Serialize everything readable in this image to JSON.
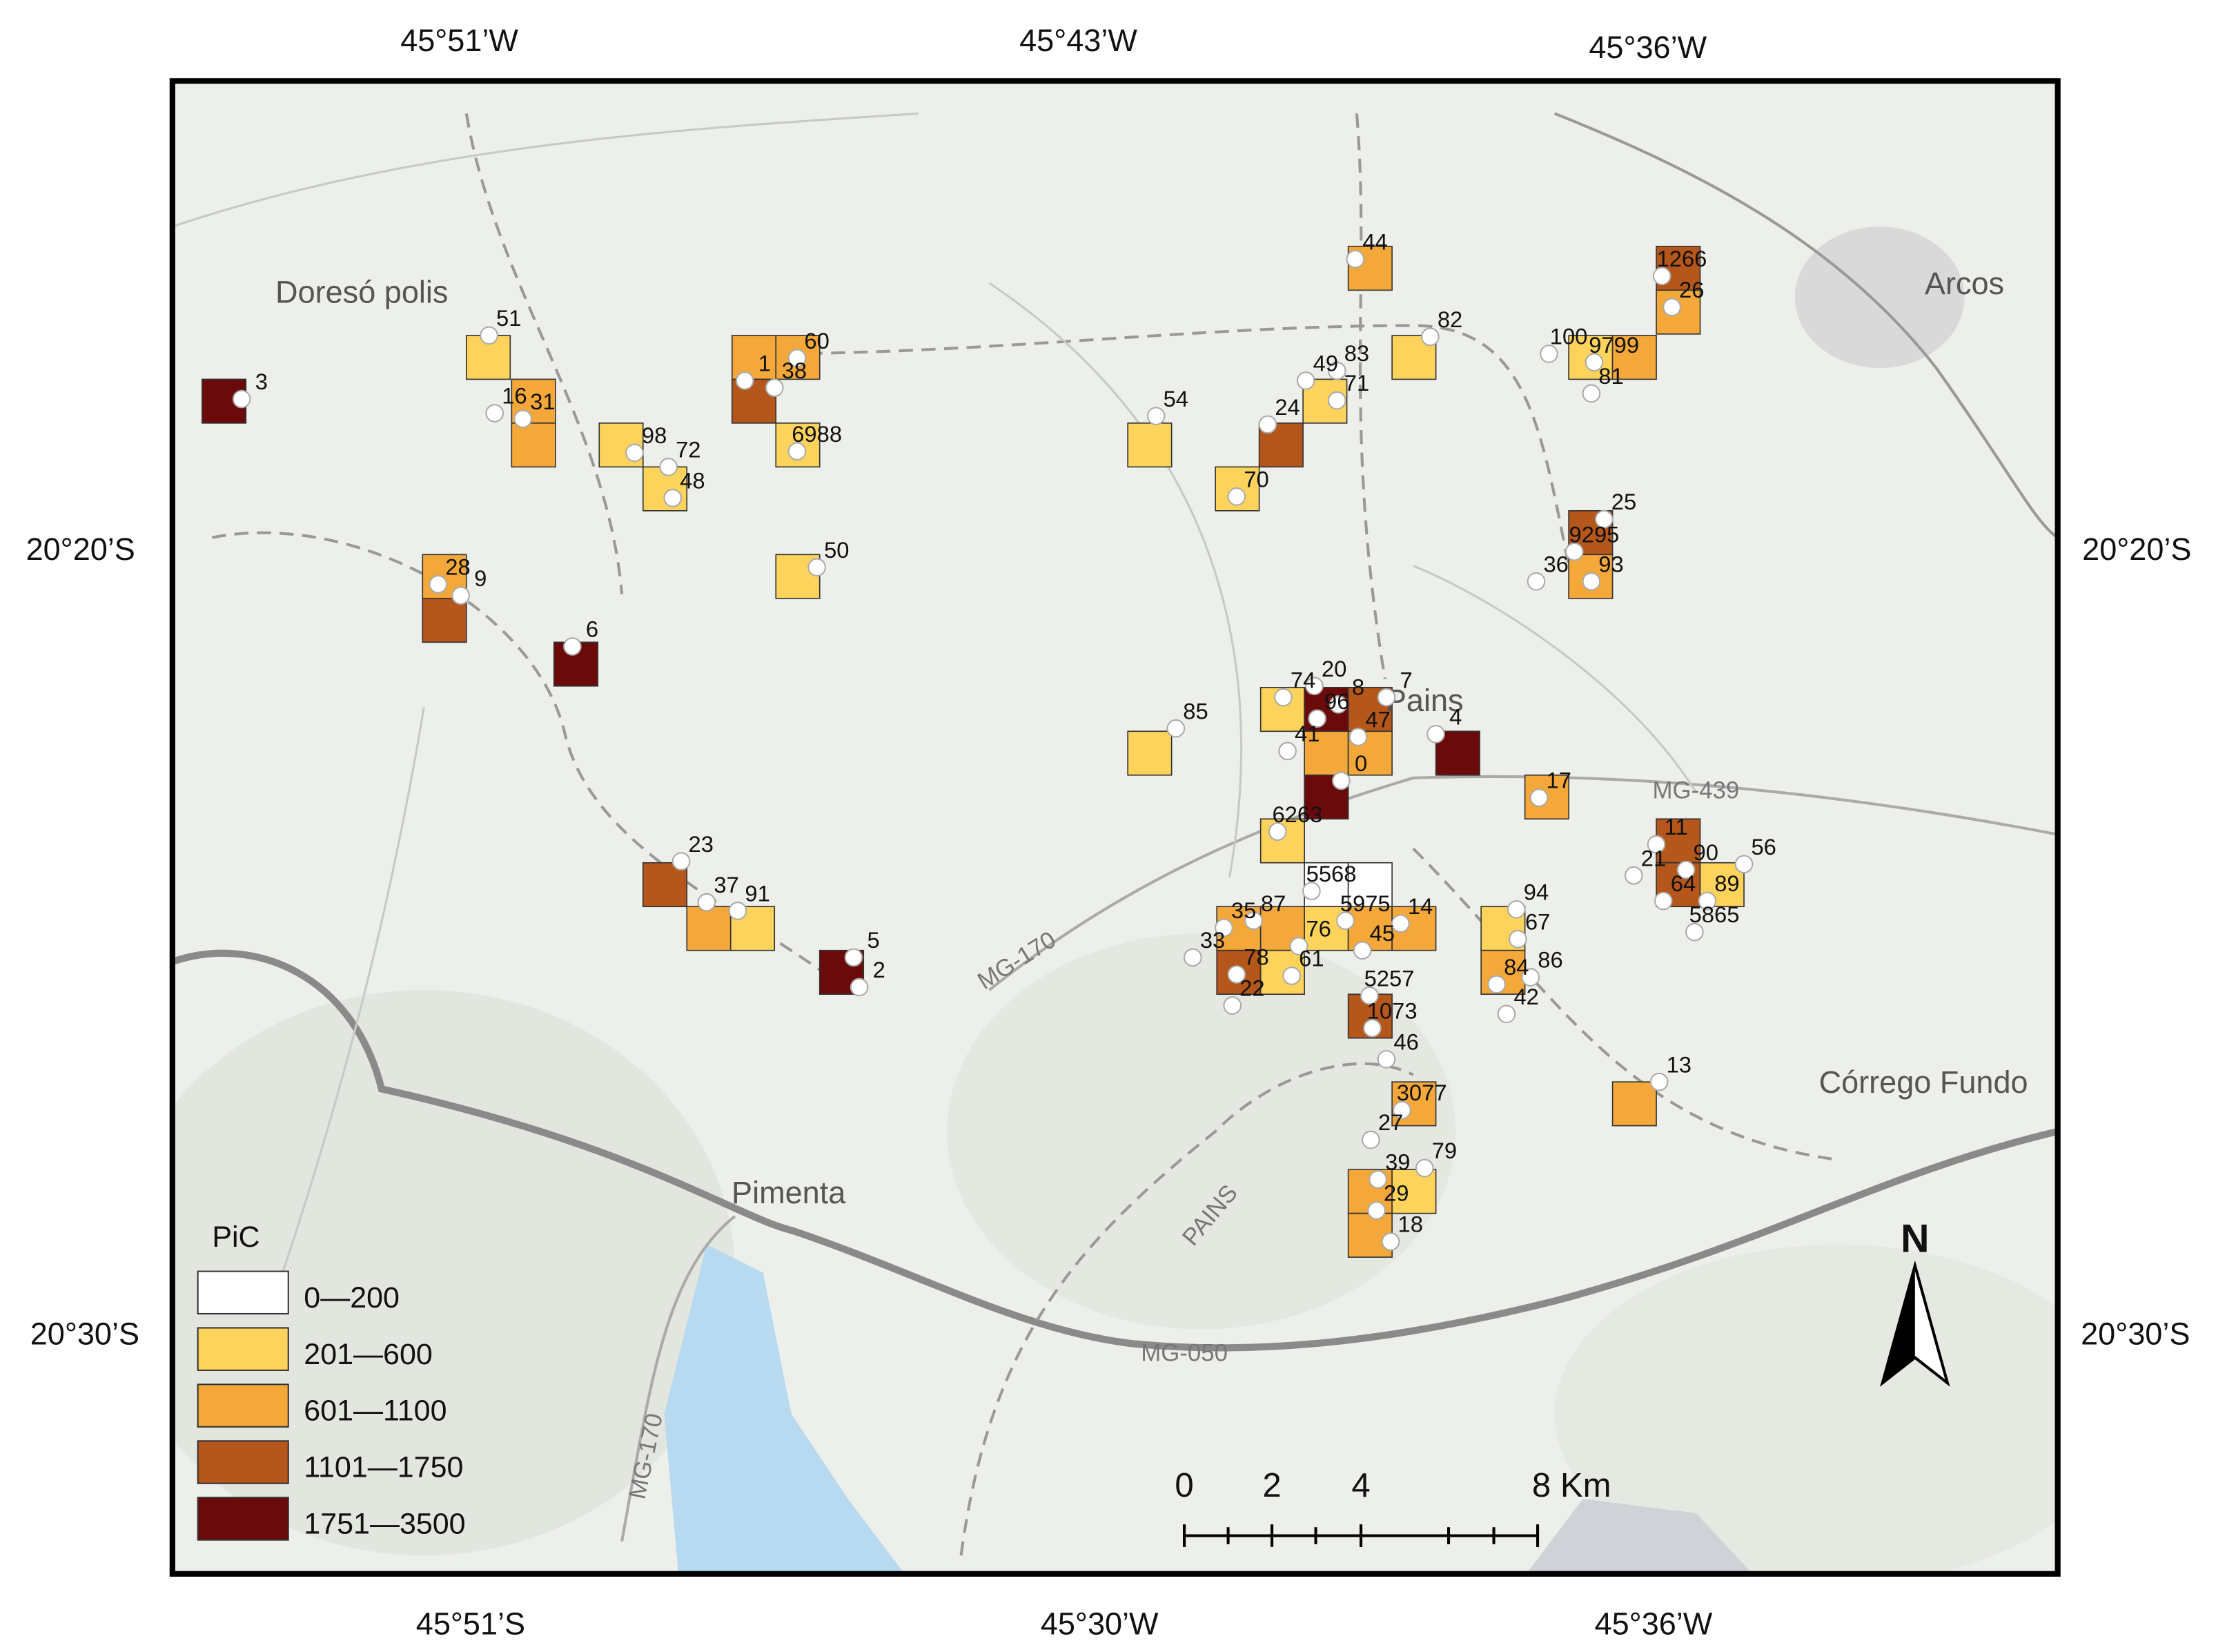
{
  "frame_labels": {
    "top": [
      "45°51’W",
      "45°43’W",
      "45°36’W"
    ],
    "bottom": [
      "45°51’S",
      "45°30’W",
      "45°36’W"
    ],
    "left": [
      "20°20’S",
      "20°30’S"
    ],
    "right": [
      "20°20’S",
      "20°30’S"
    ]
  },
  "places": [
    "Doresó polis",
    "Arcos",
    "Córrego Fundo",
    "Pimenta",
    "Pains"
  ],
  "roads": [
    "MG-439",
    "MG-170",
    "MG-050",
    "MG-170",
    "PAINS"
  ],
  "legend": {
    "title": "PiC",
    "items": [
      {
        "label": "0—200",
        "color": "#ffffff"
      },
      {
        "label": "201—600",
        "color": "#fdd35c"
      },
      {
        "label": "601—1100",
        "color": "#f4a83a"
      },
      {
        "label": "1101—1750",
        "color": "#b5561b"
      },
      {
        "label": "1751—3500",
        "color": "#6b0a0a"
      }
    ]
  },
  "scale_bar": {
    "labels": [
      "0",
      "2",
      "4",
      "8 Km"
    ]
  },
  "north": "N",
  "sites": [
    "3",
    "51",
    "16",
    "31",
    "98",
    "72",
    "48",
    "1",
    "38",
    "60",
    "6988",
    "50",
    "28",
    "9",
    "6",
    "23",
    "37",
    "91",
    "5",
    "2",
    "54",
    "24",
    "70",
    "49",
    "83",
    "71",
    "44",
    "82",
    "100",
    "9799",
    "81",
    "1266",
    "26",
    "25",
    "9295",
    "36",
    "93",
    "85",
    "74",
    "20",
    "96",
    "8",
    "7",
    "47",
    "41",
    "0",
    "4",
    "17",
    "6263",
    "5568",
    "5975",
    "14",
    "35",
    "87",
    "76",
    "45",
    "33",
    "78",
    "61",
    "22",
    "5257",
    "1073",
    "46",
    "3077",
    "27",
    "39",
    "79",
    "29",
    "18",
    "94",
    "67",
    "84",
    "86",
    "42",
    "11",
    "21",
    "90",
    "56",
    "64",
    "89",
    "5865",
    "13"
  ]
}
